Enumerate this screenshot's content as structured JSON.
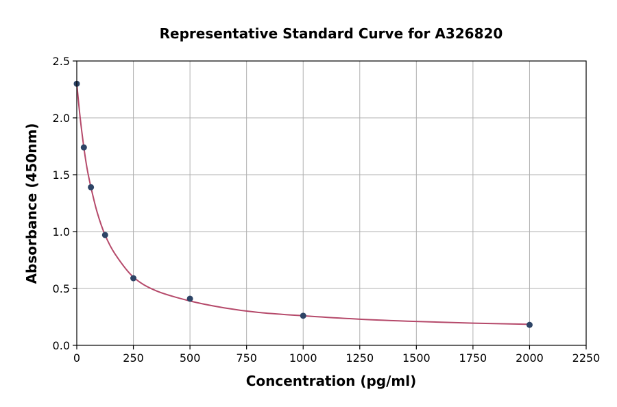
{
  "chart_data": {
    "type": "scatter",
    "title": "Representative Standard Curve for A326820",
    "xlabel": "Concentration (pg/ml)",
    "ylabel": "Absorbance (450nm)",
    "xlim": [
      0,
      2250
    ],
    "ylim": [
      0,
      2.5
    ],
    "x_ticks": [
      0,
      250,
      500,
      750,
      1000,
      1250,
      1500,
      1750,
      2000,
      2250
    ],
    "y_ticks": [
      0.0,
      0.5,
      1.0,
      1.5,
      2.0,
      2.5
    ],
    "x_tick_labels": [
      "0",
      "250",
      "500",
      "750",
      "1000",
      "1250",
      "1500",
      "1750",
      "2000",
      "2250"
    ],
    "y_tick_labels": [
      "0.0",
      "0.5",
      "1.0",
      "1.5",
      "2.0",
      "2.5"
    ],
    "grid": true,
    "points": [
      {
        "x": 0,
        "y": 2.3
      },
      {
        "x": 31.25,
        "y": 1.74
      },
      {
        "x": 62.5,
        "y": 1.39
      },
      {
        "x": 125,
        "y": 0.97
      },
      {
        "x": 250,
        "y": 0.59
      },
      {
        "x": 500,
        "y": 0.41
      },
      {
        "x": 1000,
        "y": 0.26
      },
      {
        "x": 2000,
        "y": 0.18
      }
    ],
    "fit_curve": [
      {
        "x": 0,
        "y": 2.3
      },
      {
        "x": 15,
        "y": 2.0
      },
      {
        "x": 31.25,
        "y": 1.74
      },
      {
        "x": 45,
        "y": 1.56
      },
      {
        "x": 62.5,
        "y": 1.39
      },
      {
        "x": 90,
        "y": 1.17
      },
      {
        "x": 125,
        "y": 0.97
      },
      {
        "x": 170,
        "y": 0.8
      },
      {
        "x": 250,
        "y": 0.6
      },
      {
        "x": 350,
        "y": 0.48
      },
      {
        "x": 500,
        "y": 0.39
      },
      {
        "x": 650,
        "y": 0.33
      },
      {
        "x": 800,
        "y": 0.29
      },
      {
        "x": 1000,
        "y": 0.26
      },
      {
        "x": 1250,
        "y": 0.23
      },
      {
        "x": 1500,
        "y": 0.21
      },
      {
        "x": 1750,
        "y": 0.195
      },
      {
        "x": 2000,
        "y": 0.185
      }
    ],
    "colors": {
      "point": "#2d4466",
      "curve": "#b5496a"
    }
  }
}
